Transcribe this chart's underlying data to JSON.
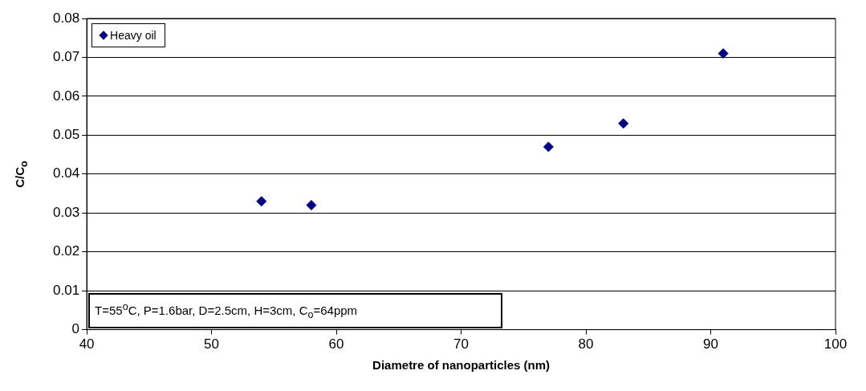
{
  "chart_data": {
    "type": "scatter",
    "xlabel": "Diametre of nanoparticles (nm)",
    "ylabel": "C/C$_{o}$",
    "x": [
      54,
      58,
      77,
      83,
      91
    ],
    "series": [
      {
        "name": "Heavy oil",
        "color": "#000080",
        "values": [
          0.033,
          0.032,
          0.047,
          0.053,
          0.071
        ]
      }
    ],
    "xlim": [
      40,
      100
    ],
    "xticks": [
      40,
      50,
      60,
      70,
      80,
      90,
      100
    ],
    "ylim": [
      0,
      0.08
    ],
    "yticks": [
      0,
      0.01,
      0.02,
      0.03,
      0.04,
      0.05,
      0.06,
      0.07,
      0.08
    ],
    "grid": "y",
    "legend": "top left",
    "marker": "diamond",
    "annotations": [
      "T=55$^{o}$C, P=1.6bar, D=2.5cm, H=3cm, C$_{o}$=64ppm"
    ]
  }
}
